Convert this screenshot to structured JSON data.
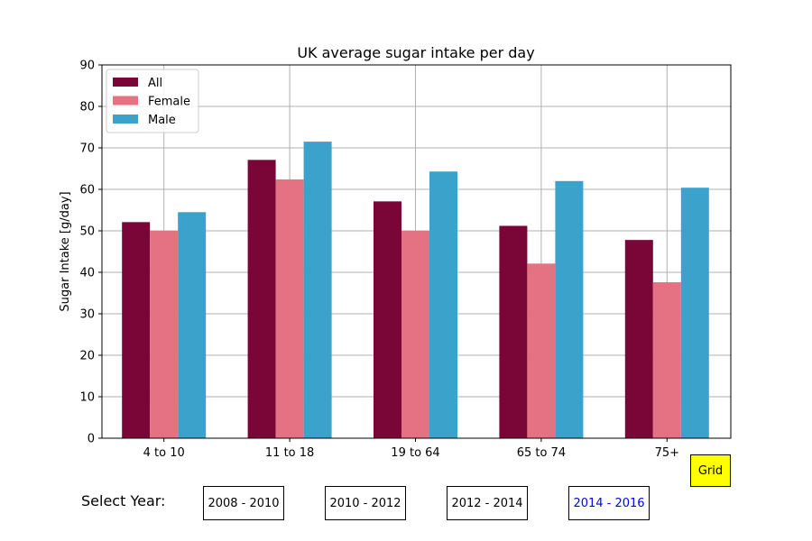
{
  "chart_data": {
    "type": "bar",
    "title": "UK average sugar intake per day",
    "xlabel": "",
    "ylabel": "Sugar Intake [g/day]",
    "ylim": [
      0,
      90
    ],
    "yticks": [
      0,
      10,
      20,
      30,
      40,
      50,
      60,
      70,
      80,
      90
    ],
    "categories": [
      "4 to 10",
      "11 to 18",
      "19 to 64",
      "65 to 74",
      "75+"
    ],
    "series": [
      {
        "name": "All",
        "color": "#7a0638",
        "values": [
          52.1,
          67.1,
          57.1,
          51.2,
          47.8
        ]
      },
      {
        "name": "Female",
        "color": "#e57282",
        "values": [
          50.0,
          62.4,
          50.0,
          42.1,
          37.6
        ]
      },
      {
        "name": "Male",
        "color": "#3ba3cb",
        "values": [
          54.5,
          71.5,
          64.3,
          62.0,
          60.4
        ]
      }
    ],
    "grid": true,
    "legend": "top-left"
  },
  "controls": {
    "grid_label": "Grid",
    "grid_color": "#ffff00",
    "select_year_label": "Select Year:",
    "years": [
      "2008 - 2010",
      "2010 - 2012",
      "2012 - 2014",
      "2014 - 2016"
    ],
    "active_year": "2014 - 2016",
    "active_color": "#0000ff"
  }
}
